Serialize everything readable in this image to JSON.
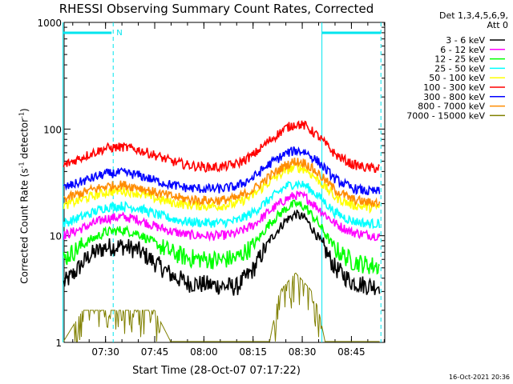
{
  "chart_data": {
    "type": "line",
    "title": "RHESSI Observing Summary Count Rates, Corrected",
    "xlabel": "Start Time (28-Oct-07 07:17:22)",
    "ylabel_main": "Corrected Count Rate (s",
    "ylabel_sup1": "-1",
    "ylabel_mid": " detector",
    "ylabel_sup2": "-1",
    "ylabel_end": ")",
    "y_scale": "log",
    "ylim": [
      1,
      1000
    ],
    "xlim_minutes": [
      7.28,
      9.0
    ],
    "x_ticks": [
      "07:30",
      "07:45",
      "08:00",
      "08:15",
      "08:30",
      "08:45"
    ],
    "y_ticks": [
      "1",
      "10",
      "100",
      "1000"
    ],
    "legend_header": [
      "Det 1,3,4,5,6,9,",
      "Att 0"
    ],
    "legend_placement": "right-outside",
    "night_marker_label": "N",
    "timestamp": "16-Oct-2021 20:36",
    "series": [
      {
        "name": "3 - 6 keV",
        "color": "#000000",
        "x": [
          "07:17",
          "07:20",
          "07:25",
          "07:30",
          "07:35",
          "07:40",
          "07:45",
          "07:50",
          "07:55",
          "08:00",
          "08:05",
          "08:10",
          "08:15",
          "08:20",
          "08:25",
          "08:28",
          "08:31",
          "08:35",
          "08:40",
          "08:45",
          "08:50",
          "08:53"
        ],
        "values": [
          3.5,
          4.3,
          6.5,
          7.8,
          8.0,
          7.3,
          5.6,
          4.3,
          3.6,
          3.5,
          3.4,
          3.3,
          4.8,
          9.0,
          14.0,
          16.0,
          14.5,
          9.5,
          5.0,
          3.7,
          3.4,
          3.4
        ]
      },
      {
        "name": "6 - 12 keV",
        "color": "#ff00ff",
        "x": [
          "07:17",
          "07:20",
          "07:25",
          "07:30",
          "07:35",
          "07:40",
          "07:45",
          "07:50",
          "07:55",
          "08:00",
          "08:05",
          "08:10",
          "08:15",
          "08:20",
          "08:25",
          "08:28",
          "08:31",
          "08:35",
          "08:40",
          "08:45",
          "08:50",
          "08:53"
        ],
        "values": [
          10.0,
          10.8,
          12.5,
          14.5,
          15.0,
          14.2,
          12.3,
          11.0,
          10.2,
          10.0,
          10.0,
          10.5,
          12.5,
          17.0,
          22.0,
          24.0,
          23.0,
          18.0,
          13.0,
          10.8,
          10.2,
          10.0
        ]
      },
      {
        "name": "12 - 25 keV",
        "color": "#00ff00",
        "x": [
          "07:17",
          "07:20",
          "07:25",
          "07:30",
          "07:35",
          "07:40",
          "07:45",
          "07:50",
          "07:55",
          "08:00",
          "08:05",
          "08:10",
          "08:15",
          "08:20",
          "08:25",
          "08:28",
          "08:31",
          "08:35",
          "08:40",
          "08:45",
          "08:50",
          "08:53"
        ],
        "values": [
          6.0,
          7.0,
          9.0,
          10.8,
          11.3,
          10.5,
          8.5,
          7.0,
          6.2,
          6.0,
          5.9,
          6.2,
          8.0,
          13.0,
          18.0,
          20.0,
          18.5,
          13.0,
          7.5,
          5.8,
          5.3,
          5.2
        ]
      },
      {
        "name": "25 - 50 keV",
        "color": "#00ffff",
        "x": [
          "07:17",
          "07:20",
          "07:25",
          "07:30",
          "07:35",
          "07:40",
          "07:45",
          "07:50",
          "07:55",
          "08:00",
          "08:05",
          "08:10",
          "08:15",
          "08:20",
          "08:25",
          "08:28",
          "08:31",
          "08:35",
          "08:40",
          "08:45",
          "08:50",
          "08:53"
        ],
        "values": [
          13.0,
          14.0,
          16.0,
          18.5,
          19.0,
          18.2,
          16.0,
          14.5,
          13.5,
          13.2,
          13.2,
          13.8,
          16.5,
          22.0,
          29.0,
          31.0,
          29.5,
          23.5,
          16.5,
          13.8,
          13.0,
          13.0
        ]
      },
      {
        "name": "50 - 100 keV",
        "color": "#ffff00",
        "x": [
          "07:17",
          "07:20",
          "07:25",
          "07:30",
          "07:35",
          "07:40",
          "07:45",
          "07:50",
          "07:55",
          "08:00",
          "08:05",
          "08:10",
          "08:15",
          "08:20",
          "08:25",
          "08:28",
          "08:31",
          "08:35",
          "08:40",
          "08:45",
          "08:50",
          "08:53"
        ],
        "values": [
          19.0,
          20.5,
          23.0,
          25.5,
          26.5,
          25.0,
          22.5,
          20.5,
          19.5,
          19.0,
          19.0,
          20.0,
          24.0,
          32.0,
          41.0,
          44.0,
          42.0,
          33.0,
          23.0,
          19.5,
          18.5,
          18.5
        ]
      },
      {
        "name": "100 - 300 keV",
        "color": "#ff0000",
        "x": [
          "07:17",
          "07:20",
          "07:25",
          "07:30",
          "07:35",
          "07:40",
          "07:45",
          "07:50",
          "07:55",
          "08:00",
          "08:05",
          "08:10",
          "08:15",
          "08:20",
          "08:25",
          "08:28",
          "08:31",
          "08:35",
          "08:40",
          "08:45",
          "08:50",
          "08:53"
        ],
        "values": [
          45.0,
          50.0,
          58.0,
          66.0,
          68.0,
          64.0,
          57.0,
          50.0,
          46.0,
          44.0,
          44.0,
          47.0,
          57.0,
          78.0,
          102.0,
          112.0,
          107.0,
          85.0,
          58.0,
          47.0,
          43.0,
          43.0
        ]
      },
      {
        "name": "300 - 800 keV",
        "color": "#0000ff",
        "x": [
          "07:17",
          "07:20",
          "07:25",
          "07:30",
          "07:35",
          "07:40",
          "07:45",
          "07:50",
          "07:55",
          "08:00",
          "08:05",
          "08:10",
          "08:15",
          "08:20",
          "08:25",
          "08:28",
          "08:31",
          "08:35",
          "08:40",
          "08:45",
          "08:50",
          "08:53"
        ],
        "values": [
          28.0,
          30.0,
          34.0,
          38.0,
          39.0,
          37.0,
          33.0,
          30.0,
          28.0,
          27.5,
          27.5,
          29.0,
          35.0,
          47.0,
          59.0,
          63.0,
          61.0,
          49.0,
          34.0,
          28.0,
          26.0,
          26.0
        ]
      },
      {
        "name": "800 - 7000 keV",
        "color": "#ff8c00",
        "x": [
          "07:17",
          "07:20",
          "07:25",
          "07:30",
          "07:35",
          "07:40",
          "07:45",
          "07:50",
          "07:55",
          "08:00",
          "08:05",
          "08:10",
          "08:15",
          "08:20",
          "08:25",
          "08:28",
          "08:31",
          "08:35",
          "08:40",
          "08:45",
          "08:50",
          "08:53"
        ],
        "values": [
          22.0,
          23.5,
          26.5,
          29.0,
          30.0,
          28.5,
          25.5,
          23.5,
          22.0,
          21.5,
          21.5,
          22.5,
          27.0,
          36.0,
          46.0,
          50.0,
          48.0,
          38.0,
          27.0,
          22.0,
          20.5,
          20.5
        ]
      },
      {
        "name": "7000 - 15000 keV",
        "color": "#808000",
        "x": [
          "07:17",
          "07:23",
          "07:35",
          "07:45",
          "07:50",
          "08:20",
          "08:23",
          "08:28",
          "08:33",
          "08:35",
          "08:37",
          "08:40",
          "08:45",
          "08:53"
        ],
        "values": [
          1.0,
          2.0,
          2.0,
          2.0,
          1.0,
          1.0,
          3.0,
          4.5,
          3.0,
          2.0,
          1.0,
          1.0,
          1.0,
          1.0
        ]
      }
    ]
  }
}
